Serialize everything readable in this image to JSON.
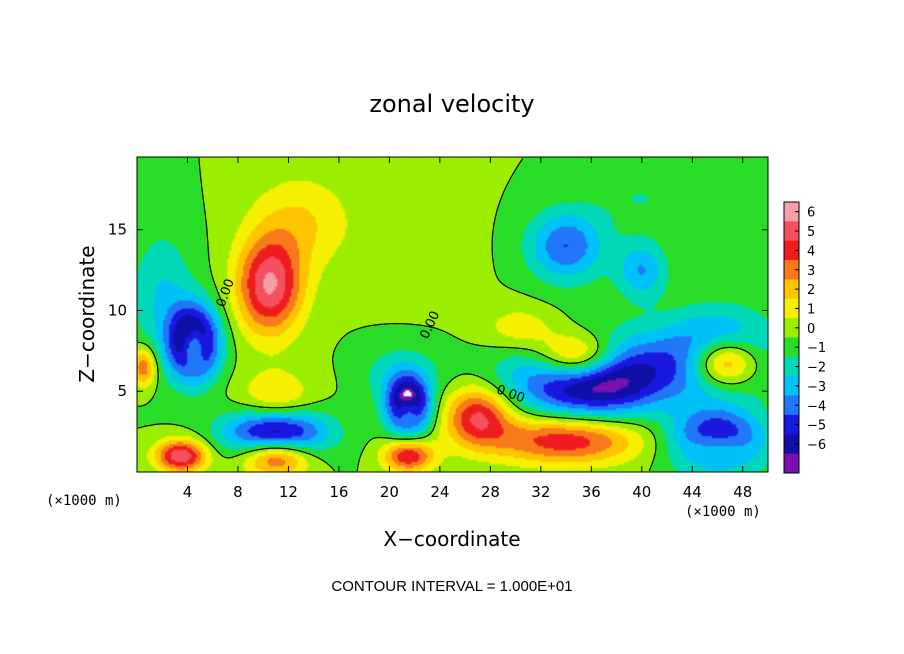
{
  "chart_data": {
    "type": "heatmap",
    "title": "zonal velocity",
    "xlabel": "X−coordinate",
    "ylabel": "Z−coordinate",
    "x_unit_left": "(×1000 m)",
    "x_unit_right": "(×1000 m)",
    "xlim": [
      0,
      50
    ],
    "ylim": [
      0,
      19.5
    ],
    "x_ticks": [
      4,
      8,
      12,
      16,
      20,
      24,
      28,
      32,
      36,
      40,
      44,
      48
    ],
    "y_ticks": [
      5,
      10,
      15
    ],
    "contour_interval_text": "CONTOUR INTERVAL = 1.000E+01",
    "contour_labels": [
      "0.00",
      "0.00",
      "0.00"
    ],
    "colorbar": {
      "ticks": [
        6,
        5,
        4,
        3,
        2,
        1,
        0,
        -1,
        -2,
        -3,
        -4,
        -5,
        -6
      ],
      "tick_labels": [
        "6",
        "5",
        "4",
        "3",
        "2",
        "1",
        "0",
        "−1",
        "−2",
        "−3",
        "−4",
        "−5",
        "−6"
      ],
      "colors": [
        "#f5a0a8",
        "#f55060",
        "#ee1c1c",
        "#f87a1a",
        "#ffc400",
        "#f5f000",
        "#9cee00",
        "#28dc28",
        "#00d8b8",
        "#00c0f8",
        "#2078f8",
        "#1818e0",
        "#1010a8",
        "#7a10b0"
      ]
    },
    "features": [
      {
        "x": 10.5,
        "z": 11.5,
        "value": 6,
        "sx": 2.6,
        "sy": 3.0
      },
      {
        "x": 13.0,
        "z": 15.5,
        "value": 2,
        "sx": 4.0,
        "sy": 3.0
      },
      {
        "x": 11.0,
        "z": 4.0,
        "value": 3,
        "sx": 3.0,
        "sy": 2.0
      },
      {
        "x": 4.5,
        "z": 7.8,
        "value": 6,
        "sx": 1.0,
        "sy": 1.3
      },
      {
        "x": 4.5,
        "z": 8.0,
        "value": -9,
        "sx": 1.9,
        "sy": 2.2
      },
      {
        "x": 11.0,
        "z": 1.0,
        "value": 6,
        "sx": 2.8,
        "sy": 1.2
      },
      {
        "x": 11.0,
        "z": 2.4,
        "value": -8,
        "sx": 3.8,
        "sy": 1.6
      },
      {
        "x": 3.5,
        "z": 1.0,
        "value": 6,
        "sx": 2.0,
        "sy": 1.0
      },
      {
        "x": 35.0,
        "z": 7.0,
        "value": 8,
        "sx": 3.4,
        "sy": 1.6
      },
      {
        "x": 36.0,
        "z": 6.0,
        "value": -9,
        "sx": 5.8,
        "sy": 2.4
      },
      {
        "x": 46.5,
        "z": 6.8,
        "value": 8,
        "sx": 2.8,
        "sy": 1.6
      },
      {
        "x": 46.0,
        "z": 7.2,
        "value": -6,
        "sx": 4.2,
        "sy": 2.5
      },
      {
        "x": 34.0,
        "z": 2.0,
        "value": 5,
        "sx": 6.0,
        "sy": 1.5
      },
      {
        "x": 27.0,
        "z": 3.5,
        "value": 5,
        "sx": 2.6,
        "sy": 1.8
      },
      {
        "x": 21.5,
        "z": 1.0,
        "value": 5,
        "sx": 2.0,
        "sy": 1.0
      },
      {
        "x": 21.5,
        "z": 3.8,
        "value": 5,
        "sx": 1.0,
        "sy": 1.0
      },
      {
        "x": 21.5,
        "z": 4.0,
        "value": -9,
        "sx": 1.6,
        "sy": 1.6
      },
      {
        "x": 46.0,
        "z": 1.5,
        "value": 5,
        "sx": 2.6,
        "sy": 1.2
      },
      {
        "x": 46.0,
        "z": 1.8,
        "value": -8,
        "sx": 3.5,
        "sy": 1.8
      },
      {
        "x": 34.0,
        "z": 14.0,
        "value": -4,
        "sx": 3.0,
        "sy": 2.2
      },
      {
        "x": 40.0,
        "z": 12.5,
        "value": -3,
        "sx": 2.0,
        "sy": 1.8
      },
      {
        "x": 30.5,
        "z": 8.8,
        "value": 2,
        "sx": 3.2,
        "sy": 1.5
      },
      {
        "x": 2.0,
        "z": 11.0,
        "value": -2,
        "sx": 2.5,
        "sy": 4.0
      },
      {
        "x": 21.0,
        "z": 6.0,
        "value": -2,
        "sx": 3.0,
        "sy": 1.8
      },
      {
        "x": 40.0,
        "z": 17.0,
        "value": -1,
        "sx": 4.0,
        "sy": 2.0
      },
      {
        "x": 0.5,
        "z": 6.5,
        "value": 4,
        "sx": 1.0,
        "sy": 1.2
      },
      {
        "x": 22.0,
        "z": 14.0,
        "value": 0.4,
        "sx": 5.0,
        "sy": 4.0
      }
    ]
  }
}
